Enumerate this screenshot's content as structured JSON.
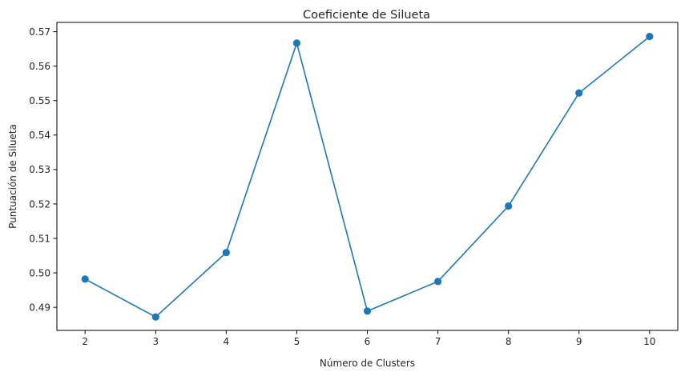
{
  "chart_data": {
    "type": "line",
    "title": "Coeficiente de Silueta",
    "xlabel": "Número de Clusters",
    "ylabel": "Puntuación de Silueta",
    "x": [
      2,
      3,
      4,
      5,
      6,
      7,
      8,
      9,
      10
    ],
    "series": [
      {
        "values": [
          0.4982,
          0.4872,
          0.5059,
          0.5667,
          0.4889,
          0.4975,
          0.5194,
          0.5522,
          0.5686
        ],
        "color": "#1f77b4",
        "marker": "circle"
      }
    ],
    "xlim": [
      1.6,
      10.4
    ],
    "ylim": [
      0.4833,
      0.5727
    ],
    "x_ticks": [
      2,
      3,
      4,
      5,
      6,
      7,
      8,
      9,
      10
    ],
    "x_tick_labels": [
      "2",
      "3",
      "4",
      "5",
      "6",
      "7",
      "8",
      "9",
      "10"
    ],
    "y_ticks": [
      0.49,
      0.5,
      0.51,
      0.52,
      0.53,
      0.54,
      0.55,
      0.56,
      0.57
    ],
    "y_tick_labels": [
      "0.49",
      "0.50",
      "0.51",
      "0.52",
      "0.53",
      "0.54",
      "0.55",
      "0.56",
      "0.57"
    ],
    "grid": false,
    "legend": "none"
  }
}
